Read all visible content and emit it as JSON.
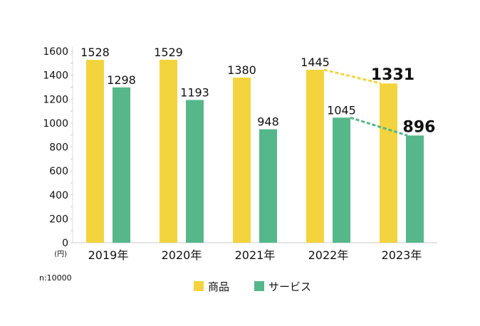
{
  "chart_data": {
    "type": "bar",
    "title": "",
    "xlabel": "",
    "ylabel": "(円)",
    "ylim": [
      0,
      1600
    ],
    "yticks": [
      0,
      200,
      400,
      600,
      800,
      1000,
      1200,
      1400,
      1600
    ],
    "categories": [
      "2019年",
      "2020年",
      "2021年",
      "2022年",
      "2023年"
    ],
    "series": [
      {
        "name": "商品",
        "color": "#F4D43E",
        "values": [
          1528,
          1529,
          1380,
          1445,
          1331
        ]
      },
      {
        "name": "サービス",
        "color": "#55B78A",
        "values": [
          1298,
          1193,
          948,
          1045,
          896
        ]
      }
    ],
    "annotations": {
      "trend_lines": "dashed lines from 2022 to 2023 for each series",
      "highlight_category": "2023年"
    },
    "legend": "bottom-center",
    "grid": false,
    "note": "n:10000"
  }
}
